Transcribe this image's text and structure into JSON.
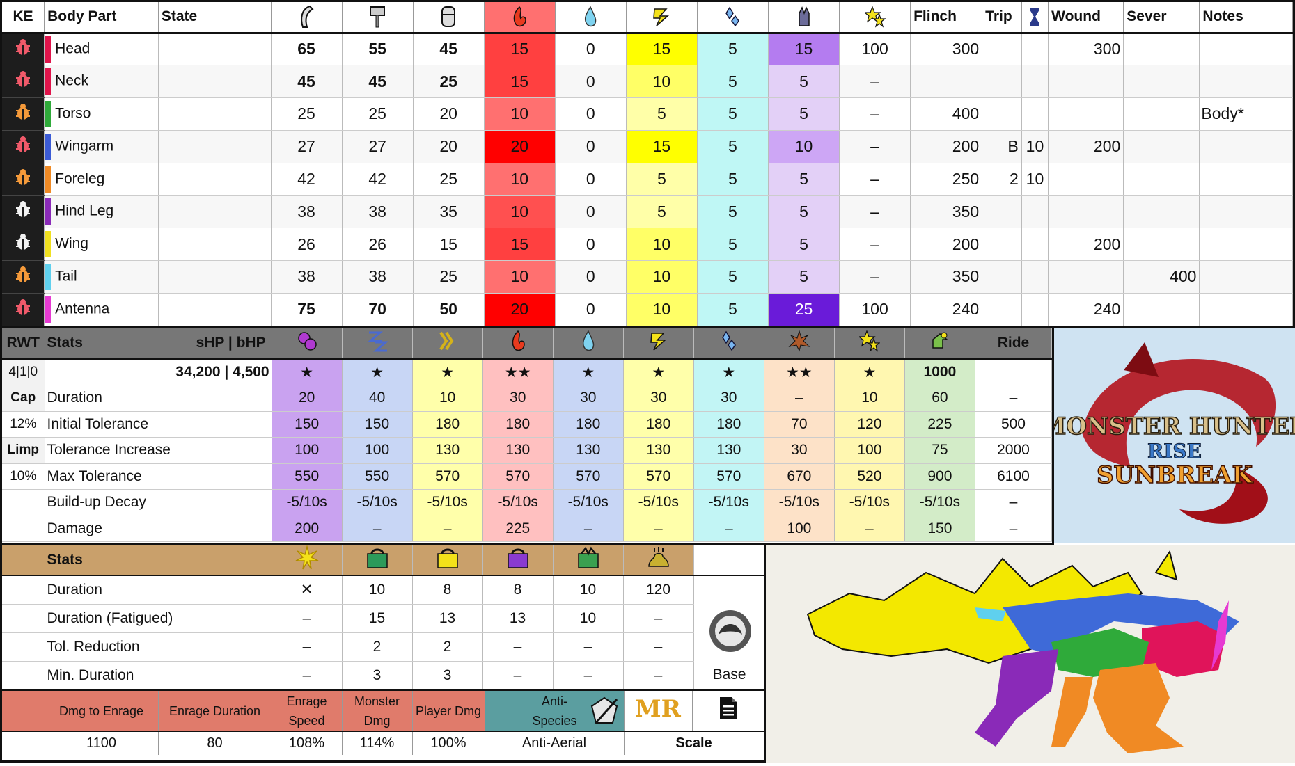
{
  "colors": {
    "fire_high": "#ff0000",
    "fire_mid": "#ff5a5a",
    "fire_low": "#ff8080",
    "water": "#ffffff",
    "thunder_high": "#ffff00",
    "thunder_low": "#ffffa8",
    "ice": "#bff7f5",
    "dragon_high": "#6a1bd9",
    "dragon_mid": "#b47cf0",
    "dragon_low": "#e3d0f7"
  },
  "hitzones": {
    "headers": {
      "ke": "KE",
      "part": "Body Part",
      "state": "State",
      "flinch": "Flinch",
      "trip": "Trip",
      "wound": "Wound",
      "sever": "Sever",
      "notes": "Notes"
    },
    "icons": [
      "sever-icon",
      "blunt-icon",
      "shot-icon",
      "fire-icon",
      "water-icon",
      "thunder-icon",
      "ice-icon",
      "dragon-icon",
      "stun-icon"
    ],
    "rows": [
      {
        "ke": "red",
        "part": "Head",
        "color": "#e0144b",
        "sever": "65",
        "blunt": "55",
        "shot": "45",
        "fire": "15",
        "water": "0",
        "thunder": "15",
        "ice": "5",
        "dragon": "15",
        "stun": "100",
        "flinch": "300",
        "trip_a": "",
        "trip_b": "",
        "wound": "300",
        "sever_val": "",
        "notes": "",
        "bold": true,
        "fire_c": "#ff4040",
        "thunder_c": "#ffff00",
        "dragon_c": "#b47cf0"
      },
      {
        "ke": "red",
        "part": "Neck",
        "color": "#e0144b",
        "sever": "45",
        "blunt": "45",
        "shot": "25",
        "fire": "15",
        "water": "0",
        "thunder": "10",
        "ice": "5",
        "dragon": "5",
        "stun": "–",
        "flinch": "",
        "trip_a": "",
        "trip_b": "",
        "wound": "",
        "sever_val": "",
        "notes": "",
        "bold": true,
        "fire_c": "#ff4040",
        "thunder_c": "#ffff66",
        "dragon_c": "#e3d0f7"
      },
      {
        "ke": "orange",
        "part": "Torso",
        "color": "#2faa3a",
        "sever": "25",
        "blunt": "25",
        "shot": "20",
        "fire": "10",
        "water": "0",
        "thunder": "5",
        "ice": "5",
        "dragon": "5",
        "stun": "–",
        "flinch": "400",
        "trip_a": "",
        "trip_b": "",
        "wound": "",
        "sever_val": "",
        "notes": "Body*",
        "bold": false,
        "fire_c": "#ff7070",
        "thunder_c": "#ffffa8",
        "dragon_c": "#e3d0f7"
      },
      {
        "ke": "red",
        "part": "Wingarm",
        "color": "#3b5bd6",
        "sever": "27",
        "blunt": "27",
        "shot": "20",
        "fire": "20",
        "water": "0",
        "thunder": "15",
        "ice": "5",
        "dragon": "10",
        "stun": "–",
        "flinch": "200",
        "trip_a": "B",
        "trip_b": "10",
        "wound": "200",
        "sever_val": "",
        "notes": "",
        "bold": false,
        "fire_c": "#ff0000",
        "thunder_c": "#ffff00",
        "dragon_c": "#cda6f5"
      },
      {
        "ke": "orange",
        "part": "Foreleg",
        "color": "#f08a24",
        "sever": "42",
        "blunt": "42",
        "shot": "25",
        "fire": "10",
        "water": "0",
        "thunder": "5",
        "ice": "5",
        "dragon": "5",
        "stun": "–",
        "flinch": "250",
        "trip_a": "2",
        "trip_b": "10",
        "wound": "",
        "sever_val": "",
        "notes": "",
        "bold": false,
        "fire_c": "#ff7070",
        "thunder_c": "#ffffa8",
        "dragon_c": "#e3d0f7"
      },
      {
        "ke": "white",
        "part": "Hind Leg",
        "color": "#8a2ab8",
        "sever": "38",
        "blunt": "38",
        "shot": "35",
        "fire": "10",
        "water": "0",
        "thunder": "5",
        "ice": "5",
        "dragon": "5",
        "stun": "–",
        "flinch": "350",
        "trip_a": "",
        "trip_b": "",
        "wound": "",
        "sever_val": "",
        "notes": "",
        "bold": false,
        "fire_c": "#ff5050",
        "thunder_c": "#ffffa8",
        "dragon_c": "#e3d0f7"
      },
      {
        "ke": "white",
        "part": "Wing",
        "color": "#f0e020",
        "sever": "26",
        "blunt": "26",
        "shot": "15",
        "fire": "15",
        "water": "0",
        "thunder": "10",
        "ice": "5",
        "dragon": "5",
        "stun": "–",
        "flinch": "200",
        "trip_a": "",
        "trip_b": "",
        "wound": "200",
        "sever_val": "",
        "notes": "",
        "bold": false,
        "fire_c": "#ff4040",
        "thunder_c": "#ffff66",
        "dragon_c": "#e3d0f7"
      },
      {
        "ke": "orange",
        "part": "Tail",
        "color": "#5fd0ee",
        "sever": "38",
        "blunt": "38",
        "shot": "25",
        "fire": "10",
        "water": "0",
        "thunder": "10",
        "ice": "5",
        "dragon": "5",
        "stun": "–",
        "flinch": "350",
        "trip_a": "",
        "trip_b": "",
        "wound": "",
        "sever_val": "400",
        "notes": "",
        "bold": false,
        "fire_c": "#ff7070",
        "thunder_c": "#ffff66",
        "dragon_c": "#e3d0f7"
      },
      {
        "ke": "red",
        "part": "Antenna",
        "color": "#e63ad2",
        "sever": "75",
        "blunt": "70",
        "shot": "50",
        "fire": "20",
        "water": "0",
        "thunder": "10",
        "ice": "5",
        "dragon": "25",
        "stun": "100",
        "flinch": "240",
        "trip_a": "",
        "trip_b": "",
        "wound": "240",
        "sever_val": "",
        "notes": "",
        "bold": true,
        "fire_c": "#ff0000",
        "thunder_c": "#ffff66",
        "dragon_c": "#6a1bd9"
      }
    ]
  },
  "status": {
    "header": {
      "rwt": "RWT",
      "stats": "Stats",
      "hp": "sHP  |  bHP",
      "ride": "Ride"
    },
    "icons": [
      "poison-icon",
      "sleep-icon",
      "paralysis-icon",
      "blast-fire-icon",
      "water-drop-icon",
      "thunder-icon",
      "ice-icon",
      "blast-icon",
      "stun-icon",
      "exhaust-icon"
    ],
    "left": [
      "4|1|0",
      "Cap",
      "12%",
      "Limp",
      "10%",
      ""
    ],
    "hp_value": "34,200 | 4,500",
    "stars": [
      "★",
      "★",
      "★",
      "★★",
      "★",
      "★",
      "★",
      "★★",
      "★",
      "1000"
    ],
    "col_colors": [
      "#c9a2f0",
      "#c8d6f5",
      "#ffffaa",
      "#ffc0c0",
      "#c8d6f5",
      "#ffffaa",
      "#c2f5f5",
      "#fde2c8",
      "#fff7b0",
      "#d3ecc8"
    ],
    "rows": [
      {
        "label": "Duration",
        "values": [
          "20",
          "40",
          "10",
          "30",
          "30",
          "30",
          "30",
          "–",
          "10",
          "60"
        ],
        "ride": "–"
      },
      {
        "label": "Initial Tolerance",
        "values": [
          "150",
          "150",
          "180",
          "180",
          "180",
          "180",
          "180",
          "70",
          "120",
          "225"
        ],
        "ride": "500"
      },
      {
        "label": "Tolerance Increase",
        "values": [
          "100",
          "100",
          "130",
          "130",
          "130",
          "130",
          "130",
          "30",
          "100",
          "75"
        ],
        "ride": "2000"
      },
      {
        "label": "Max Tolerance",
        "values": [
          "550",
          "550",
          "570",
          "570",
          "570",
          "570",
          "570",
          "670",
          "520",
          "900"
        ],
        "ride": "6100"
      },
      {
        "label": "Build-up Decay",
        "values": [
          "-5/10s",
          "-5/10s",
          "-5/10s",
          "-5/10s",
          "-5/10s",
          "-5/10s",
          "-5/10s",
          "-5/10s",
          "-5/10s",
          "-5/10s"
        ],
        "ride": "–"
      },
      {
        "label": "Damage",
        "values": [
          "200",
          "–",
          "–",
          "225",
          "–",
          "–",
          "–",
          "100",
          "–",
          "150"
        ],
        "ride": "–"
      }
    ]
  },
  "traps": {
    "header": "Stats",
    "icons": [
      "flash-icon",
      "shock-trap-icon",
      "pitfall-trap-icon",
      "purple-trap-icon",
      "green-trap-icon",
      "dung-icon"
    ],
    "rows": [
      {
        "label": "Duration",
        "values": [
          "✕",
          "10",
          "8",
          "8",
          "10",
          "120"
        ]
      },
      {
        "label": "Duration (Fatigued)",
        "values": [
          "–",
          "15",
          "13",
          "13",
          "10",
          "–"
        ]
      },
      {
        "label": "Tol. Reduction",
        "values": [
          "–",
          "2",
          "2",
          "–",
          "–",
          "–"
        ]
      },
      {
        "label": "Min. Duration",
        "values": [
          "–",
          "3",
          "3",
          "–",
          "–",
          "–"
        ]
      }
    ],
    "base_label": "Base"
  },
  "rage": {
    "headers": [
      "Dmg to Enrage",
      "Enrage Duration",
      "Enrage Speed",
      "Monster Dmg",
      "Player Dmg"
    ],
    "values": [
      "1100",
      "80",
      "108%",
      "114%",
      "100%"
    ],
    "anti_label": "Anti-Species",
    "anti_value": "Anti-Aerial",
    "mr_label": "MR",
    "scale_label": "Scale"
  },
  "logo": {
    "line1": "MONSTER HUNTER",
    "line2": "RISE",
    "line3": "SUNBREAK"
  }
}
